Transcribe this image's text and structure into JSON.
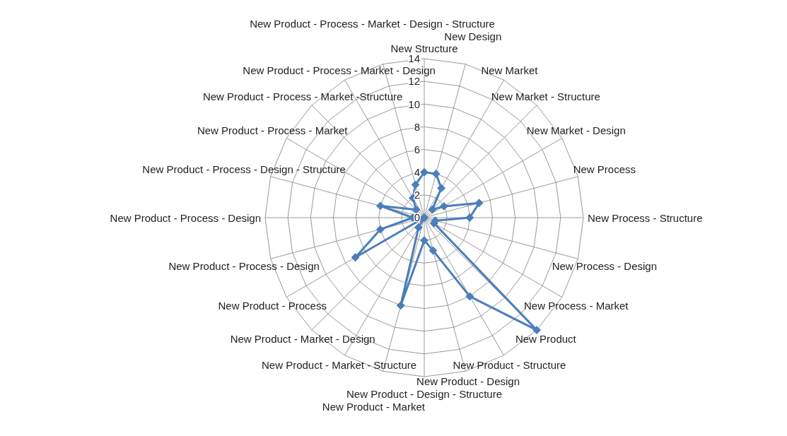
{
  "chart_data": {
    "type": "radar",
    "categories": [
      "New Structure",
      "New Design",
      "New Market",
      "New Market - Structure",
      "New Market - Design",
      "New Process",
      "New Process - Structure",
      "New Process - Design",
      "New Process - Market",
      "New Product",
      "New Product - Structure",
      "New Product - Design",
      "New Product - Design - Structure",
      "New Product - Market",
      "New Product - Market - Structure",
      "New Product - Market - Design",
      "New Product - Process",
      "New Product - Process - Design",
      "New Product - Process - Design",
      "New Product - Process - Design - Structure",
      "New Product - Process - Market",
      "New Product - Process - Market -Structure",
      "New Product - Process - Market - Design",
      "New Product - Process - Market - Design - Structure"
    ],
    "series": [
      {
        "color": "#4a7ebb",
        "values": [
          4,
          4,
          3,
          1,
          2,
          5,
          4,
          1,
          1,
          14,
          8,
          3,
          2,
          8,
          1,
          0,
          7,
          4,
          1,
          4,
          null,
          1,
          2,
          3
        ]
      }
    ],
    "ylim": [
      0,
      14
    ],
    "yticks": [
      0,
      2,
      4,
      6,
      8,
      10,
      12,
      14
    ],
    "grid": true,
    "marker": "diamond",
    "line_style": "solid",
    "legend": false
  }
}
